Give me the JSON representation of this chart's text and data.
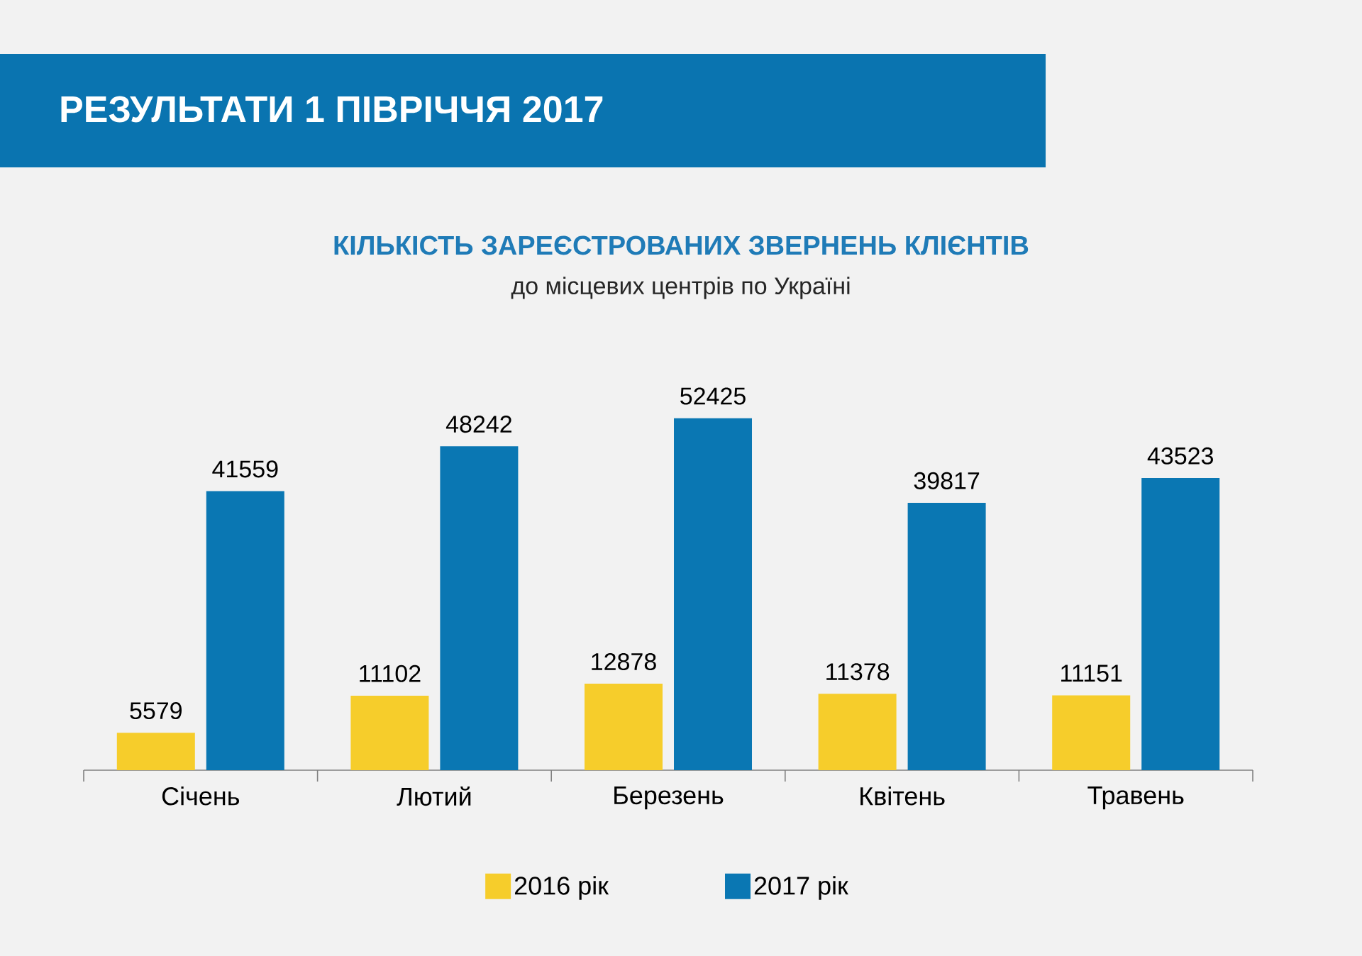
{
  "chart_data": {
    "type": "bar",
    "title": "РЕЗУЛЬТАТИ 1 ПІВРІЧЧЯ 2017",
    "subtitle": "КІЛЬКІСТЬ ЗАРЕЄСТРОВАНИХ ЗВЕРНЕНЬ КЛІЄНТІВ",
    "annotations": [
      "до місцевих центрів по Україні"
    ],
    "categories": [
      "Січень",
      "Лютий",
      "Березень",
      "Квітень",
      "Травень"
    ],
    "series": [
      {
        "name": "2016 рік",
        "color": "#f6cd2b",
        "values": [
          5579,
          11102,
          12878,
          11378,
          11151
        ]
      },
      {
        "name": "2017 рік",
        "color": "#0a77b3",
        "values": [
          41559,
          48242,
          52425,
          39817,
          43523
        ]
      }
    ],
    "tick_labels": "x",
    "data_labels": true,
    "legend": "bottom"
  }
}
